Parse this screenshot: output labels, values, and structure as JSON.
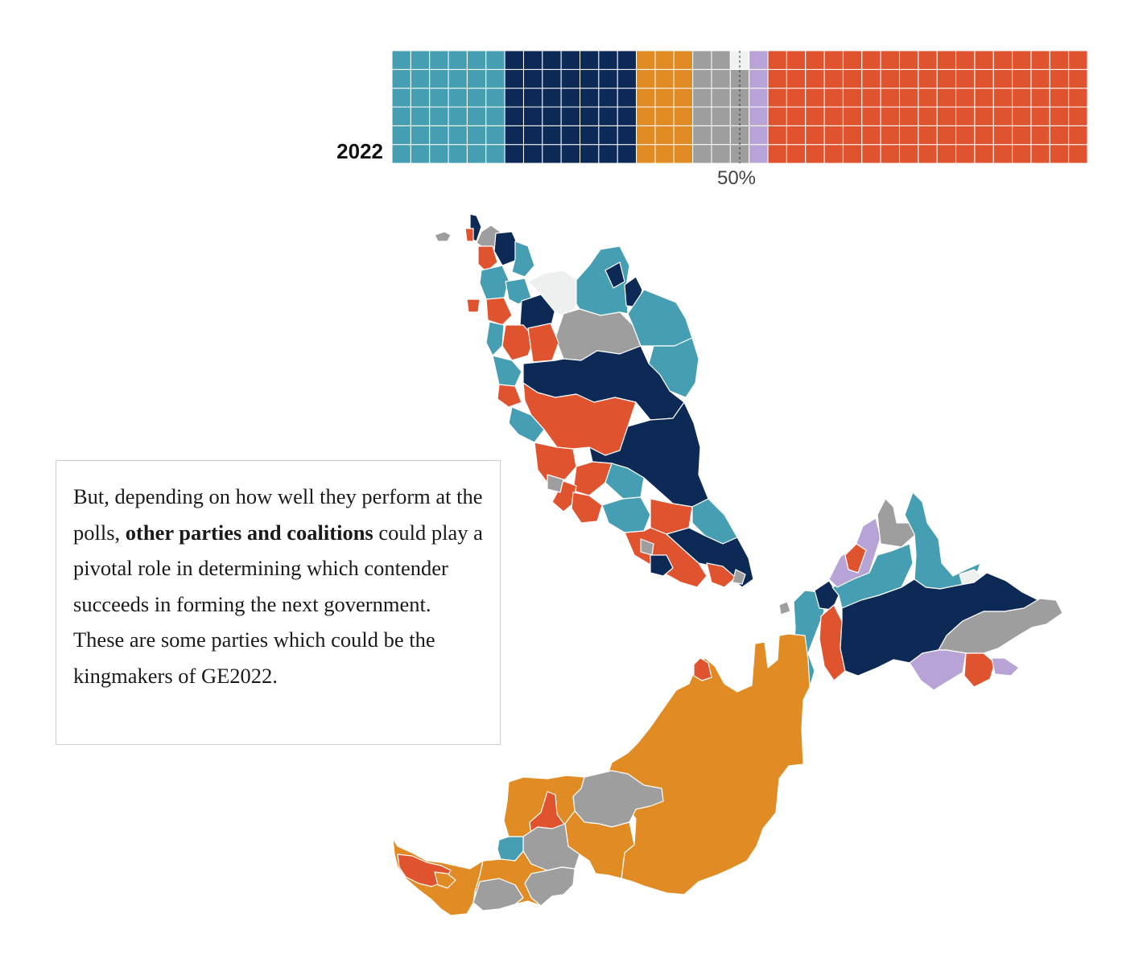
{
  "seat_chart": {
    "year": "2022",
    "midpoint_label": "50%",
    "rows": 6,
    "columns": 37,
    "total_seats": 222,
    "blocs": [
      {
        "color": "#459eb1",
        "seats": 36
      },
      {
        "color": "#0d2956",
        "seats": 42
      },
      {
        "color": "#e08b24",
        "seats": 18
      },
      {
        "color": "#9e9e9e",
        "seats": 17
      },
      {
        "color": "#f0f2f1",
        "seats": 1
      },
      {
        "color": "#b8a3d6",
        "seats": 6
      },
      {
        "color": "#e0532f",
        "seats": 102
      }
    ]
  },
  "map": {
    "colors": {
      "teal": "#459eb1",
      "navy": "#0d2956",
      "orange": "#e08b24",
      "gray": "#9e9e9e",
      "light": "#eef0f0",
      "lavender": "#b8a3d6",
      "red": "#e0532f"
    }
  },
  "story": {
    "part1": "But, depending on how well they perform at the polls, ",
    "bold": "other parties and coalitions",
    "part2": " could play a pivotal role in determining which contender succeeds in forming the next government. These are some parties which could be the kingmakers of GE2022."
  }
}
